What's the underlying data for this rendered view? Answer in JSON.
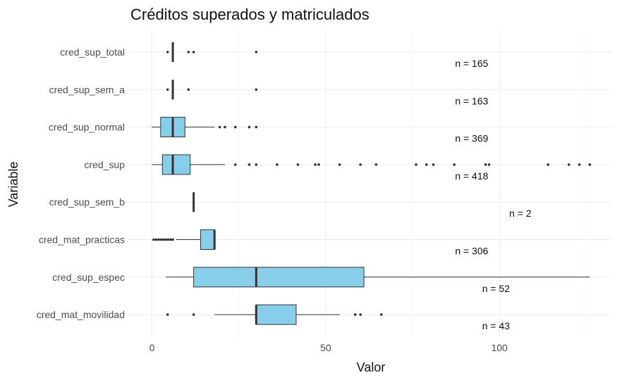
{
  "chart_data": {
    "type": "boxplot",
    "title": "Créditos superados y matriculados",
    "xlabel": "Valor",
    "ylabel": "Variable",
    "xlim": [
      -7,
      132
    ],
    "xticks": [
      0,
      50,
      100
    ],
    "grid": true,
    "box_color": "#87CEEB",
    "outline_color": "#333333",
    "categories": [
      "cred_sup_total",
      "cred_sup_sem_a",
      "cred_sup_normal",
      "cred_sup",
      "cred_sup_sem_b",
      "cred_mat_practicas",
      "cred_sup_espec",
      "cred_mat_movilidad"
    ],
    "series": [
      {
        "category": "cred_sup_total",
        "q1": 6,
        "median": 6,
        "q3": 6,
        "whisker_low": 6,
        "whisker_high": 6,
        "outliers": [
          4.5,
          10.5,
          12,
          30
        ],
        "n_label": "n = 165",
        "n_x": 92
      },
      {
        "category": "cred_sup_sem_a",
        "q1": 6,
        "median": 6,
        "q3": 6,
        "whisker_low": 6,
        "whisker_high": 6,
        "outliers": [
          4.5,
          10.5,
          30
        ],
        "n_label": "n = 163",
        "n_x": 92
      },
      {
        "category": "cred_sup_normal",
        "q1": 2.5,
        "median": 6,
        "q3": 9.5,
        "whisker_low": 0,
        "whisker_high": 18,
        "outliers": [
          19.5,
          21,
          24,
          28,
          30
        ],
        "n_label": "n = 369",
        "n_x": 92
      },
      {
        "category": "cred_sup",
        "q1": 3,
        "median": 6,
        "q3": 11,
        "whisker_low": 0,
        "whisker_high": 21,
        "outliers": [
          24,
          28,
          30,
          36,
          42,
          47,
          48,
          54,
          60,
          64.5,
          76,
          79,
          81,
          87,
          96,
          97,
          114,
          120,
          123,
          126
        ],
        "n_label": "n = 418",
        "n_x": 92
      },
      {
        "category": "cred_sup_sem_b",
        "q1": 12,
        "median": 12,
        "q3": 12,
        "whisker_low": 12,
        "whisker_high": 12,
        "outliers": [],
        "n_label": "n = 2",
        "n_x": 106
      },
      {
        "category": "cred_mat_practicas",
        "q1": 14,
        "median": 18,
        "q3": 18,
        "whisker_low": 7,
        "whisker_high": 18,
        "outliers": [
          0.5,
          1.2,
          1.9,
          2.6,
          3.3,
          4,
          4.7,
          5.4,
          6
        ],
        "n_label": "n = 306",
        "n_x": 92
      },
      {
        "category": "cred_sup_espec",
        "q1": 12,
        "median": 30,
        "q3": 61,
        "whisker_low": 4,
        "whisker_high": 126,
        "outliers": [],
        "n_label": "n = 52",
        "n_x": 99
      },
      {
        "category": "cred_mat_movilidad",
        "q1": 30,
        "median": 30,
        "q3": 41.5,
        "whisker_low": 18,
        "whisker_high": 54,
        "outliers": [
          4.5,
          12,
          58.5,
          60,
          66
        ],
        "n_label": "n = 43",
        "n_x": 99
      }
    ]
  }
}
